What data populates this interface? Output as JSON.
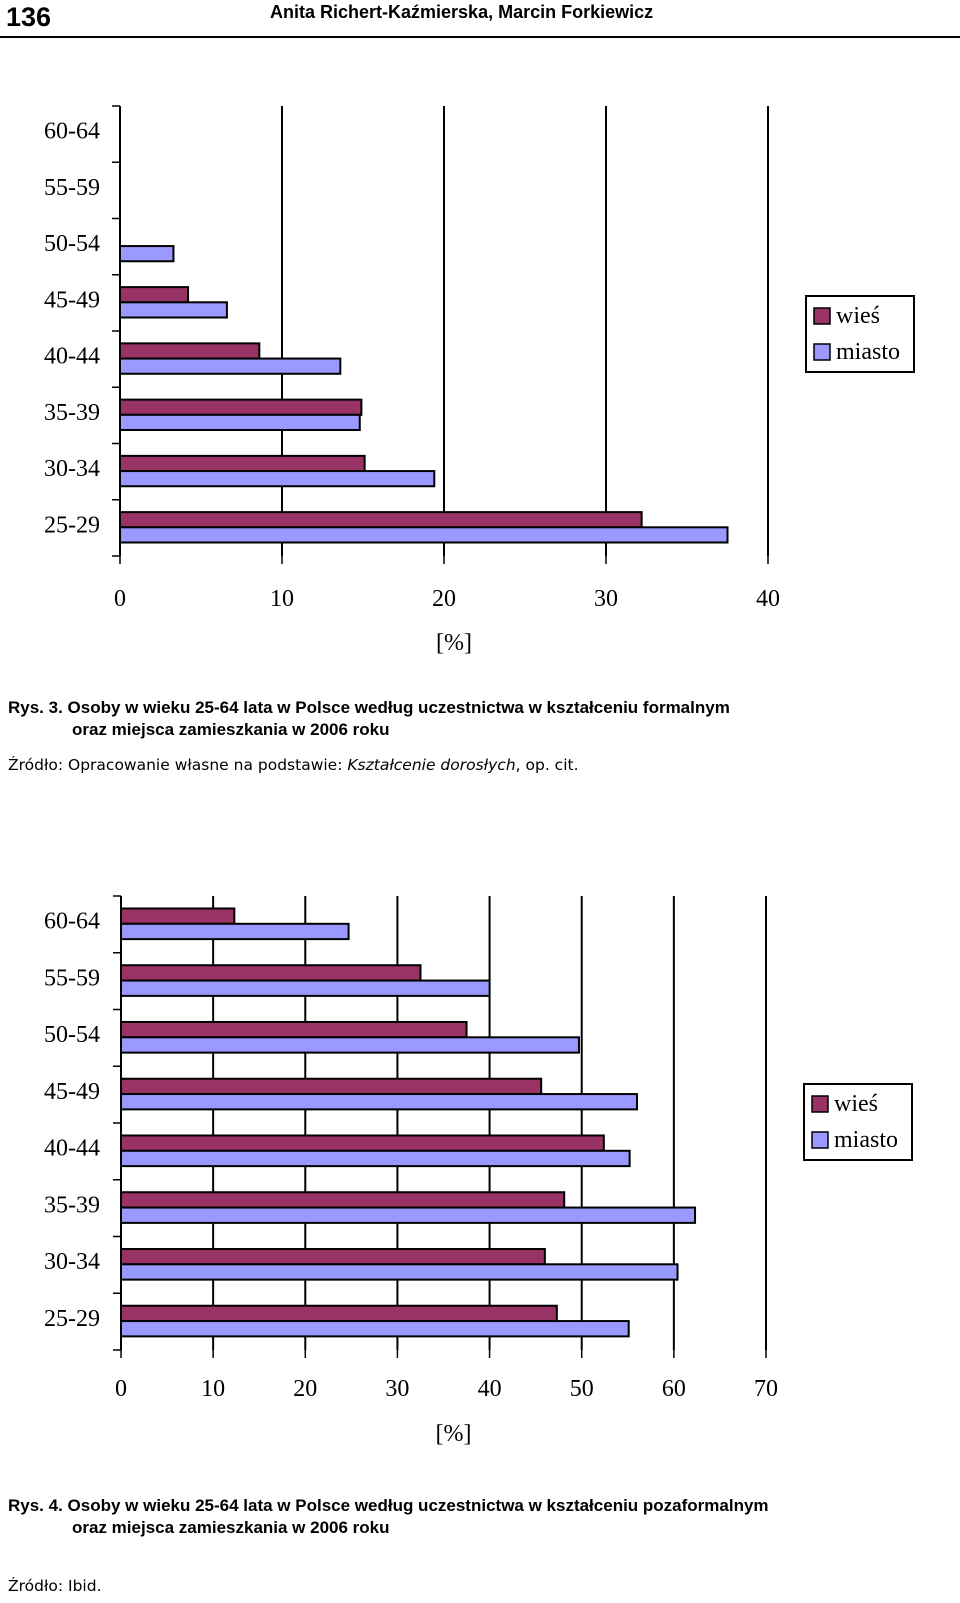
{
  "header": {
    "page_number": "136",
    "authors": "Anita Richert-Kaźmierska, Marcin Forkiewicz"
  },
  "figure3": {
    "caption_label": "Rys. 3.",
    "caption_line1": "Osoby w wieku 25-64 lata w Polsce według uczestnictwa w kształceniu formalnym",
    "caption_line2": "oraz miejsca zamieszkania w 2006 roku",
    "source_prefix": "Źródło: Opracowanie własne na podstawie: ",
    "source_italic": "Kształcenie dorosłych",
    "source_suffix": ", op. cit."
  },
  "figure4": {
    "caption_label": "Rys. 4.",
    "caption_line1": "Osoby w wieku 25-64 lata w Polsce według uczestnictwa w kształceniu pozaformalnym",
    "caption_line2": "oraz miejsca zamieszkania w 2006 roku",
    "source": "Źródło: Ibid."
  },
  "colors": {
    "wies": "#993366",
    "miasto": "#9999ff",
    "axis": "#000000"
  },
  "chart_data": [
    {
      "type": "bar",
      "orientation": "horizontal",
      "categories": [
        "25-29",
        "30-34",
        "35-39",
        "40-44",
        "45-49",
        "50-54",
        "55-59",
        "60-64"
      ],
      "series": [
        {
          "name": "wieś",
          "values": [
            32.2,
            15.1,
            14.9,
            8.6,
            4.2,
            0,
            0,
            0
          ]
        },
        {
          "name": "miasto",
          "values": [
            37.5,
            19.4,
            14.8,
            13.6,
            6.6,
            3.3,
            0,
            0
          ]
        }
      ],
      "xlim": [
        0,
        40
      ],
      "xticks": [
        "0",
        "10",
        "20",
        "30",
        "40"
      ],
      "xlabel": "[%]",
      "legend": [
        "wieś",
        "miasto"
      ],
      "legend_position": "right",
      "grid": "vertical"
    },
    {
      "type": "bar",
      "orientation": "horizontal",
      "categories": [
        "25-29",
        "30-34",
        "35-39",
        "40-44",
        "45-49",
        "50-54",
        "55-59",
        "60-64"
      ],
      "series": [
        {
          "name": "wieś",
          "values": [
            47.3,
            46,
            48.1,
            52.4,
            45.6,
            37.5,
            32.5,
            12.3
          ]
        },
        {
          "name": "miasto",
          "values": [
            55.1,
            60.4,
            62.3,
            55.2,
            56,
            49.7,
            40,
            24.7
          ]
        }
      ],
      "xlim": [
        0,
        70
      ],
      "xticks": [
        "0",
        "10",
        "20",
        "30",
        "40",
        "50",
        "60",
        "70"
      ],
      "xlabel": "[%]",
      "legend": [
        "wieś",
        "miasto"
      ],
      "legend_position": "right",
      "grid": "vertical"
    }
  ]
}
